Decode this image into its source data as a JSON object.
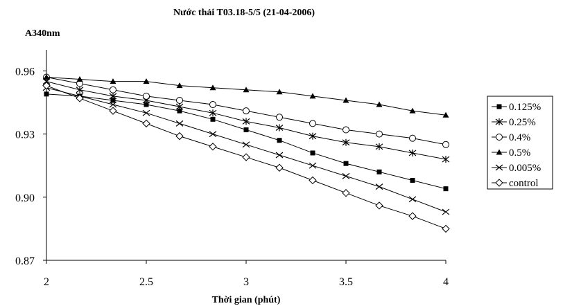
{
  "chart_data": {
    "type": "line",
    "title": "Nước thải T03.18-5/5 (21-04-2006)",
    "ylabel": "A340nm",
    "xlabel": "Thời gian (phút)",
    "xlim": [
      2,
      4
    ],
    "ylim": [
      0.87,
      0.97
    ],
    "xticks": [
      "2",
      "2.5",
      "3",
      "3.5",
      "4"
    ],
    "yticks": [
      "0.87",
      "0.90",
      "0.93",
      "0.96"
    ],
    "grid": false,
    "legend_position": "right",
    "x": [
      2.0,
      2.1667,
      2.3333,
      2.5,
      2.6667,
      2.8333,
      3.0,
      3.1667,
      3.3333,
      3.5,
      3.6667,
      3.8333,
      4.0
    ],
    "series": [
      {
        "name": "0.125%",
        "marker": "filled-square",
        "values": [
          0.949,
          0.948,
          0.946,
          0.944,
          0.941,
          0.937,
          0.932,
          0.927,
          0.921,
          0.916,
          0.912,
          0.908,
          0.904
        ]
      },
      {
        "name": "0.25%",
        "marker": "asterisk",
        "values": [
          0.955,
          0.951,
          0.948,
          0.946,
          0.943,
          0.94,
          0.936,
          0.933,
          0.929,
          0.926,
          0.924,
          0.921,
          0.918
        ]
      },
      {
        "name": "0.4%",
        "marker": "open-circle",
        "values": [
          0.957,
          0.954,
          0.951,
          0.948,
          0.946,
          0.944,
          0.941,
          0.938,
          0.935,
          0.932,
          0.93,
          0.928,
          0.925
        ]
      },
      {
        "name": "0.5%",
        "marker": "filled-triangle",
        "values": [
          0.957,
          0.956,
          0.955,
          0.955,
          0.953,
          0.952,
          0.951,
          0.95,
          0.948,
          0.946,
          0.944,
          0.941,
          0.939
        ]
      },
      {
        "name": "0.005%",
        "marker": "x",
        "values": [
          0.952,
          0.948,
          0.944,
          0.94,
          0.935,
          0.93,
          0.925,
          0.92,
          0.915,
          0.91,
          0.905,
          0.899,
          0.893
        ]
      },
      {
        "name": "control",
        "marker": "open-diamond",
        "values": [
          0.953,
          0.947,
          0.941,
          0.935,
          0.929,
          0.924,
          0.919,
          0.914,
          0.908,
          0.902,
          0.896,
          0.891,
          0.885
        ]
      }
    ]
  }
}
